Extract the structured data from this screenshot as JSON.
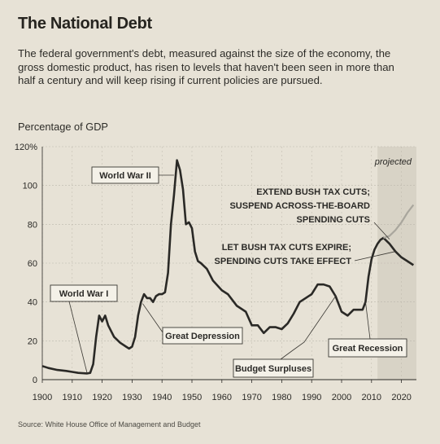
{
  "header": {
    "title": "The National Debt",
    "description": "The federal government's debt, measured against the size of the economy, the gross domestic product, has risen to levels that haven't been seen in more than half a century and will keep rising if current policies are pursued.",
    "ylabel": "Percentage of GDP",
    "source": "Source: White House Office of Management and Budget"
  },
  "colors": {
    "background": "#e7e2d6",
    "line": "#2a2926",
    "projection_shade": "#d8d3c6",
    "grid": "#bdb8ac"
  },
  "chart_data": {
    "type": "line",
    "title": "The National Debt",
    "ylabel": "Percentage of GDP",
    "xlim": [
      1900,
      2025
    ],
    "ylim": [
      0,
      120
    ],
    "yticks": [
      0,
      20,
      40,
      60,
      80,
      100,
      120
    ],
    "ytick_labels": [
      "0",
      "20",
      "40",
      "60",
      "80",
      "100",
      "120%"
    ],
    "xticks": [
      1900,
      1910,
      1920,
      1930,
      1940,
      1950,
      1960,
      1970,
      1980,
      1990,
      2000,
      2010,
      2020
    ],
    "grid": true,
    "projected_from": 2012,
    "projected_label": "projected",
    "series": [
      {
        "values": [
          [
            1900,
            7
          ],
          [
            1902,
            6
          ],
          [
            1905,
            5
          ],
          [
            1908,
            4.5
          ],
          [
            1910,
            4
          ],
          [
            1912,
            3.5
          ],
          [
            1915,
            3.2
          ],
          [
            1916,
            3.5
          ],
          [
            1917,
            8
          ],
          [
            1918,
            22
          ],
          [
            1919,
            33
          ],
          [
            1920,
            30
          ],
          [
            1921,
            33
          ],
          [
            1922,
            28
          ],
          [
            1924,
            22
          ],
          [
            1926,
            19
          ],
          [
            1928,
            17
          ],
          [
            1929,
            16
          ],
          [
            1930,
            17
          ],
          [
            1931,
            22
          ],
          [
            1932,
            33
          ],
          [
            1933,
            40
          ],
          [
            1934,
            44
          ],
          [
            1935,
            42
          ],
          [
            1936,
            42
          ],
          [
            1937,
            40
          ],
          [
            1938,
            43
          ],
          [
            1939,
            44
          ],
          [
            1940,
            44
          ],
          [
            1941,
            45
          ],
          [
            1942,
            55
          ],
          [
            1943,
            80
          ],
          [
            1944,
            95
          ],
          [
            1945,
            113
          ],
          [
            1946,
            108
          ],
          [
            1947,
            98
          ],
          [
            1948,
            80
          ],
          [
            1949,
            81
          ],
          [
            1950,
            78
          ],
          [
            1951,
            66
          ],
          [
            1952,
            61
          ],
          [
            1953,
            60
          ],
          [
            1955,
            57
          ],
          [
            1957,
            51
          ],
          [
            1960,
            46
          ],
          [
            1962,
            44
          ],
          [
            1965,
            38
          ],
          [
            1968,
            35
          ],
          [
            1970,
            28
          ],
          [
            1972,
            28
          ],
          [
            1974,
            24
          ],
          [
            1976,
            27
          ],
          [
            1978,
            27
          ],
          [
            1980,
            26
          ],
          [
            1982,
            29
          ],
          [
            1984,
            34
          ],
          [
            1986,
            40
          ],
          [
            1988,
            42
          ],
          [
            1990,
            44
          ],
          [
            1992,
            49
          ],
          [
            1994,
            49
          ],
          [
            1996,
            48
          ],
          [
            1998,
            43
          ],
          [
            2000,
            35
          ],
          [
            2002,
            33
          ],
          [
            2004,
            36
          ],
          [
            2006,
            36
          ],
          [
            2007,
            36
          ],
          [
            2008,
            40
          ],
          [
            2009,
            53
          ],
          [
            2010,
            62
          ],
          [
            2011,
            67
          ],
          [
            2012,
            70
          ],
          [
            2013,
            72
          ],
          [
            2014,
            73
          ],
          [
            2016,
            70
          ],
          [
            2018,
            66
          ],
          [
            2020,
            63
          ],
          [
            2022,
            61
          ],
          [
            2024,
            59
          ]
        ]
      },
      {
        "values": [
          [
            2014,
            73
          ],
          [
            2016,
            74
          ],
          [
            2018,
            77
          ],
          [
            2020,
            81
          ],
          [
            2022,
            86
          ],
          [
            2024,
            90
          ]
        ]
      }
    ],
    "annotations": [
      {
        "label": "World War I"
      },
      {
        "label": "World War II"
      },
      {
        "label": "Great Depression"
      },
      {
        "label": "Budget Surpluses"
      },
      {
        "label": "Great Recession"
      },
      {
        "lines": [
          "EXTEND BUSH TAX CUTS;",
          "SUSPEND ACROSS-THE-BOARD",
          "SPENDING CUTS"
        ]
      },
      {
        "lines": [
          "LET BUSH TAX CUTS EXPIRE;",
          "SPENDING CUTS TAKE EFFECT"
        ]
      }
    ]
  }
}
